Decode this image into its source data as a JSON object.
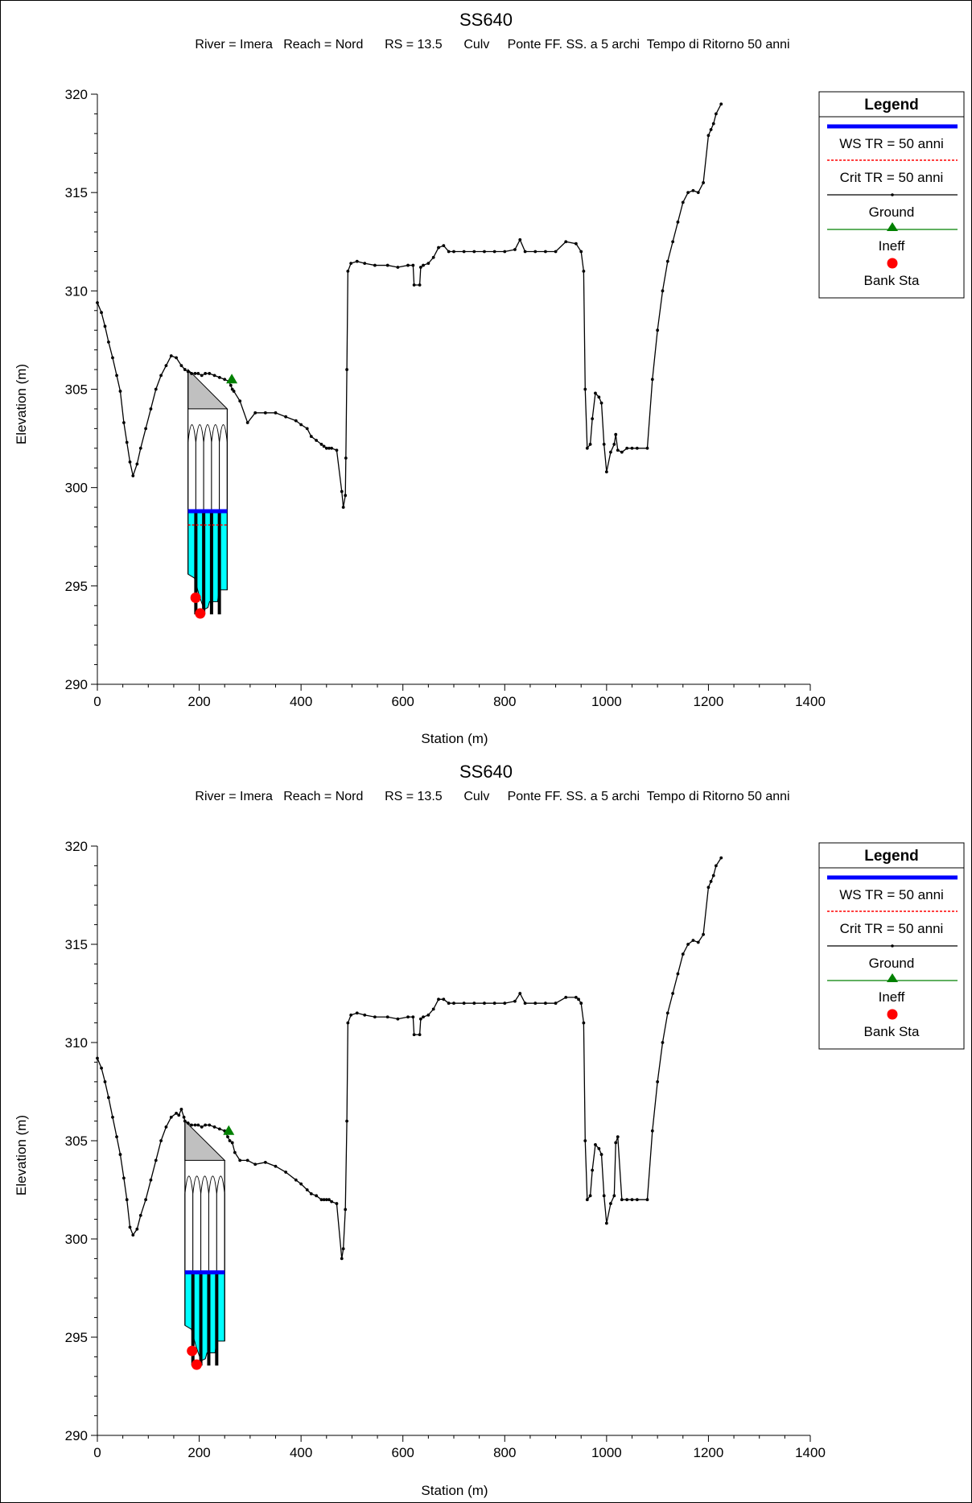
{
  "chart_data": [
    {
      "type": "line",
      "title": "SS640",
      "subtitle": "River = Imera   Reach = Nord      RS = 13.5      Culv     Ponte FF. SS. a 5 archi  Tempo di Ritorno 50 anni",
      "xlabel": "Station (m)",
      "ylabel": "Elevation (m)",
      "xlim": [
        0,
        1400
      ],
      "ylim": [
        290,
        320
      ],
      "xticks": [
        "0",
        "200",
        "400",
        "600",
        "800",
        "1000",
        "1200",
        "1400"
      ],
      "yticks": [
        "290",
        "295",
        "300",
        "305",
        "310",
        "315",
        "320"
      ],
      "grid": false,
      "legend_position": "top-right",
      "legend": {
        "title": "Legend",
        "items": [
          "WS TR = 50 anni",
          "Crit TR = 50 anni",
          "Ground",
          "Ineff",
          "Bank Sta"
        ]
      },
      "colors": {
        "ws": "#0000ff",
        "crit": "#ff0000",
        "ground": "#000000",
        "ineff": "#008000",
        "bank": "#ff0000",
        "water": "#00ffff",
        "deck": "#c0c0c0"
      },
      "series": [
        {
          "name": "Ground",
          "x": [
            0,
            8,
            15,
            22,
            30,
            38,
            45,
            52,
            58,
            64,
            70,
            78,
            85,
            95,
            105,
            115,
            125,
            135,
            145,
            155,
            165,
            172,
            178,
            185,
            192,
            198,
            205,
            212,
            220,
            230,
            240,
            250,
            258,
            262,
            265,
            268,
            280,
            295,
            310,
            330,
            350,
            370,
            390,
            400,
            412,
            420,
            430,
            440,
            445,
            450,
            455,
            460,
            470,
            480,
            483,
            487,
            488,
            490,
            492,
            498,
            510,
            525,
            545,
            570,
            590,
            610,
            620,
            622,
            633,
            635,
            640,
            650,
            660,
            670,
            680,
            690,
            700,
            720,
            740,
            760,
            780,
            800,
            820,
            830,
            840,
            860,
            880,
            900,
            920,
            940,
            950,
            955,
            958,
            962,
            968,
            972,
            978,
            985,
            990,
            995,
            1000,
            1008,
            1015,
            1018,
            1022,
            1030,
            1040,
            1050,
            1060,
            1080,
            1090,
            1100,
            1110,
            1120,
            1130,
            1140,
            1150,
            1160,
            1170,
            1180,
            1190,
            1200,
            1205,
            1210,
            1215,
            1225
          ],
          "y": [
            309.4,
            308.9,
            308.2,
            307.4,
            306.6,
            305.7,
            304.9,
            303.3,
            302.3,
            301.3,
            300.6,
            301.2,
            302.0,
            303.0,
            304.0,
            305.0,
            305.7,
            306.2,
            306.7,
            306.6,
            306.2,
            306.0,
            305.9,
            305.8,
            305.8,
            305.8,
            305.7,
            305.8,
            305.8,
            305.7,
            305.6,
            305.5,
            305.4,
            305.2,
            305.0,
            304.9,
            304.4,
            303.3,
            303.8,
            303.8,
            303.8,
            303.6,
            303.4,
            303.2,
            303.0,
            302.6,
            302.4,
            302.2,
            302.1,
            302.0,
            302.0,
            302.0,
            301.9,
            299.8,
            299.0,
            299.6,
            301.5,
            306.0,
            311.0,
            311.4,
            311.5,
            311.4,
            311.3,
            311.3,
            311.2,
            311.3,
            311.3,
            310.3,
            310.3,
            311.2,
            311.3,
            311.4,
            311.7,
            312.2,
            312.3,
            312.0,
            312.0,
            312.0,
            312.0,
            312.0,
            312.0,
            312.0,
            312.1,
            312.6,
            312.0,
            312.0,
            312.0,
            312.0,
            312.5,
            312.4,
            312.0,
            311.0,
            305.0,
            302.0,
            302.2,
            303.5,
            304.8,
            304.6,
            304.3,
            302.2,
            300.8,
            301.8,
            302.2,
            302.7,
            301.9,
            301.8,
            302.0,
            302.0,
            302.0,
            302.0,
            305.5,
            308.0,
            310.0,
            311.5,
            312.5,
            313.5,
            314.5,
            315.0,
            315.1,
            315.0,
            315.5,
            317.9,
            318.2,
            318.5,
            319.0,
            319.5
          ]
        },
        {
          "name": "WS TR = 50 anni",
          "x": [
            178,
            255
          ],
          "y": [
            298.8,
            298.8
          ]
        },
        {
          "name": "Crit TR = 50 anni",
          "x": [
            178,
            255
          ],
          "y": [
            298.1,
            298.1
          ]
        },
        {
          "name": "Ineff",
          "x": [
            264
          ],
          "y": [
            305.5
          ]
        },
        {
          "name": "Bank Sta",
          "x": [
            193,
            202
          ],
          "y": [
            294.4,
            293.6
          ]
        }
      ],
      "culvert": {
        "left": 178,
        "right": 255,
        "deck_top_left": 306.0,
        "deck_top_right": 304.0,
        "deck_bottom": 304.0,
        "spans": 5,
        "arch_crown": 303.2
      }
    },
    {
      "type": "line",
      "title": "SS640",
      "subtitle": "River = Imera   Reach = Nord      RS = 13.5      Culv     Ponte FF. SS. a 5 archi  Tempo di Ritorno 50 anni",
      "xlabel": "Station (m)",
      "ylabel": "Elevation (m)",
      "xlim": [
        0,
        1400
      ],
      "ylim": [
        290,
        320
      ],
      "xticks": [
        "0",
        "200",
        "400",
        "600",
        "800",
        "1000",
        "1200",
        "1400"
      ],
      "yticks": [
        "290",
        "295",
        "300",
        "305",
        "310",
        "315",
        "320"
      ],
      "grid": false,
      "legend_position": "top-right",
      "legend": {
        "title": "Legend",
        "items": [
          "WS TR = 50 anni",
          "Crit TR = 50 anni",
          "Ground",
          "Ineff",
          "Bank Sta"
        ]
      },
      "colors": {
        "ws": "#0000ff",
        "crit": "#ff0000",
        "ground": "#000000",
        "ineff": "#008000",
        "bank": "#ff0000",
        "water": "#00ffff",
        "deck": "#c0c0c0"
      },
      "series": [
        {
          "name": "Ground",
          "x": [
            0,
            8,
            15,
            22,
            30,
            38,
            45,
            52,
            58,
            64,
            70,
            78,
            85,
            95,
            105,
            115,
            125,
            135,
            145,
            155,
            160,
            165,
            170,
            172,
            178,
            185,
            192,
            198,
            205,
            212,
            220,
            230,
            240,
            250,
            252,
            256,
            260,
            265,
            270,
            280,
            295,
            310,
            330,
            350,
            370,
            390,
            400,
            412,
            420,
            430,
            440,
            445,
            450,
            455,
            460,
            470,
            480,
            483,
            487,
            490,
            492,
            498,
            510,
            525,
            545,
            570,
            590,
            610,
            620,
            622,
            633,
            635,
            640,
            650,
            660,
            670,
            680,
            690,
            700,
            720,
            740,
            760,
            780,
            800,
            820,
            830,
            840,
            860,
            880,
            900,
            920,
            940,
            945,
            950,
            955,
            958,
            962,
            968,
            972,
            978,
            985,
            990,
            995,
            1000,
            1008,
            1015,
            1018,
            1022,
            1030,
            1040,
            1050,
            1060,
            1080,
            1090,
            1100,
            1110,
            1120,
            1130,
            1140,
            1150,
            1160,
            1170,
            1180,
            1190,
            1200,
            1205,
            1210,
            1215,
            1225
          ],
          "y": [
            309.2,
            308.7,
            308.0,
            307.2,
            306.2,
            305.2,
            304.3,
            303.1,
            302.0,
            300.6,
            300.2,
            300.5,
            301.2,
            302.0,
            303.0,
            304.0,
            305.0,
            305.7,
            306.2,
            306.4,
            306.3,
            306.6,
            306.2,
            306.0,
            305.9,
            305.8,
            305.8,
            305.8,
            305.7,
            305.8,
            305.8,
            305.7,
            305.6,
            305.5,
            305.4,
            305.2,
            305.0,
            304.9,
            304.4,
            304.0,
            304.0,
            303.8,
            303.9,
            303.7,
            303.4,
            303.0,
            302.8,
            302.5,
            302.3,
            302.2,
            302.0,
            302.0,
            302.0,
            302.0,
            301.9,
            301.8,
            299.0,
            299.5,
            301.5,
            306.0,
            311.0,
            311.4,
            311.5,
            311.4,
            311.3,
            311.3,
            311.2,
            311.3,
            311.3,
            310.4,
            310.4,
            311.2,
            311.3,
            311.4,
            311.7,
            312.2,
            312.2,
            312.0,
            312.0,
            312.0,
            312.0,
            312.0,
            312.0,
            312.0,
            312.1,
            312.5,
            312.0,
            312.0,
            312.0,
            312.0,
            312.3,
            312.3,
            312.2,
            312.0,
            311.0,
            305.0,
            302.0,
            302.2,
            303.5,
            304.8,
            304.6,
            304.3,
            302.2,
            300.8,
            301.8,
            302.2,
            304.9,
            305.2,
            302.0,
            302.0,
            302.0,
            302.0,
            302.0,
            305.5,
            308.0,
            310.0,
            311.5,
            312.5,
            313.5,
            314.5,
            315.0,
            315.2,
            315.1,
            315.5,
            317.9,
            318.2,
            318.5,
            319.0,
            319.4
          ]
        },
        {
          "name": "WS TR = 50 anni",
          "x": [
            172,
            250
          ],
          "y": [
            298.3,
            298.3
          ]
        },
        {
          "name": "Crit TR = 50 anni",
          "x": [
            172,
            250
          ],
          "y": [
            298.3,
            298.3
          ]
        },
        {
          "name": "Ineff",
          "x": [
            258
          ],
          "y": [
            305.5
          ]
        },
        {
          "name": "Bank Sta",
          "x": [
            186,
            195
          ],
          "y": [
            294.3,
            293.6
          ]
        }
      ],
      "culvert": {
        "left": 172,
        "right": 250,
        "deck_top_left": 306.0,
        "deck_top_right": 304.0,
        "deck_bottom": 304.0,
        "spans": 5,
        "arch_crown": 303.2
      }
    }
  ]
}
